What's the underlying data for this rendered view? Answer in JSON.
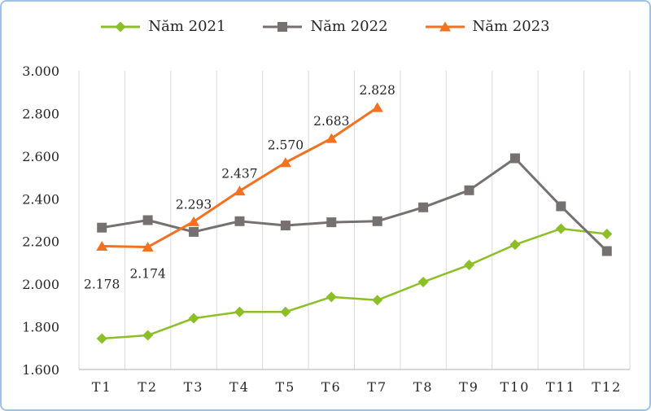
{
  "chart_data": {
    "type": "line",
    "categories": [
      "T1",
      "T2",
      "T3",
      "T4",
      "T5",
      "T6",
      "T7",
      "T8",
      "T9",
      "T10",
      "T11",
      "T12"
    ],
    "series": [
      {
        "name": "Năm 2021",
        "color": "#8CBF26",
        "marker": "diamond",
        "values": [
          1.745,
          1.76,
          1.84,
          1.87,
          1.87,
          1.94,
          1.925,
          2.01,
          2.09,
          2.185,
          2.26,
          2.235
        ]
      },
      {
        "name": "Năm 2022",
        "color": "#767171",
        "marker": "square",
        "values": [
          2.265,
          2.3,
          2.245,
          2.295,
          2.275,
          2.29,
          2.295,
          2.36,
          2.44,
          2.59,
          2.365,
          2.155
        ]
      },
      {
        "name": "Năm 2023",
        "color": "#F4711F",
        "marker": "triangle",
        "values": [
          2.178,
          2.174,
          2.293,
          2.437,
          2.57,
          2.683,
          2.828
        ],
        "labels": [
          "2.178",
          "2.174",
          "2.293",
          "2.437",
          "2.570",
          "2.683",
          "2.828"
        ]
      }
    ],
    "title": "",
    "xlabel": "",
    "ylabel": "",
    "ylim": [
      1.6,
      3.0
    ],
    "ytick_labels": [
      "3.000",
      "2.800",
      "2.600",
      "2.400",
      "2.200",
      "2.000",
      "1.800",
      "1.600"
    ],
    "grid": "vertical",
    "legend_position": "top",
    "colors": {
      "gridline": "#D9D9D9",
      "axis_line": "#BFBFBF",
      "text": "#262626",
      "frame_border": "#9DC3E6",
      "background": "#FFFFFF"
    }
  }
}
